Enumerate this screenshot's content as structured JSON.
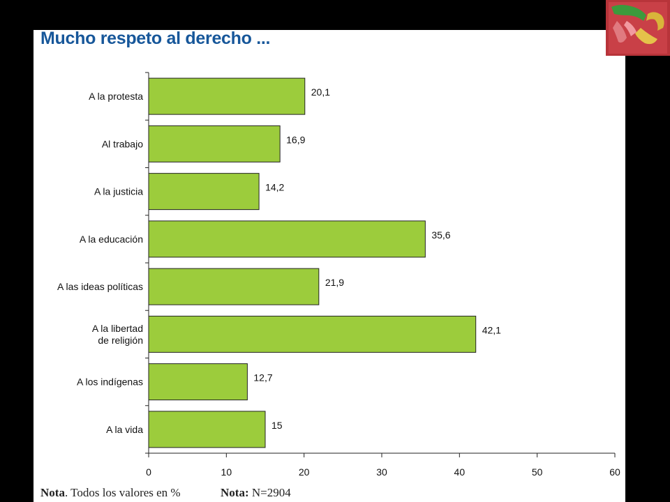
{
  "title": "Mucho respeto al derecho ...",
  "notes": {
    "note1_bold": "Nota",
    "note1_text": ". Todos los valores en %",
    "note2_bold": "Nota:",
    "note2_text": " N=2904"
  },
  "chart_data": {
    "type": "bar",
    "orientation": "horizontal",
    "categories": [
      [
        "A la protesta"
      ],
      [
        "Al trabajo"
      ],
      [
        "A la justicia"
      ],
      [
        "A la educación"
      ],
      [
        "A las ideas políticas"
      ],
      [
        "A la libertad",
        "de religión"
      ],
      [
        "A los indígenas"
      ],
      [
        "A la vida"
      ]
    ],
    "values": [
      20.1,
      16.9,
      14.2,
      35.6,
      21.9,
      42.1,
      12.7,
      15
    ],
    "value_labels": [
      "20,1",
      "16,9",
      "14,2",
      "35,6",
      "21,9",
      "42,1",
      "12,7",
      "15"
    ],
    "xlim": [
      0,
      60
    ],
    "xticks": [
      0,
      10,
      20,
      30,
      40,
      50,
      60
    ],
    "bar_color": "#9ccc3c",
    "grid": false,
    "legend": "none"
  },
  "colors": {
    "background": "#000000",
    "slide": "#ffffff",
    "title": "#17579a",
    "bar_fill": "#9ccc3c",
    "bar_stroke": "#222222"
  },
  "logo": {
    "icon": "hands-logo-icon"
  }
}
